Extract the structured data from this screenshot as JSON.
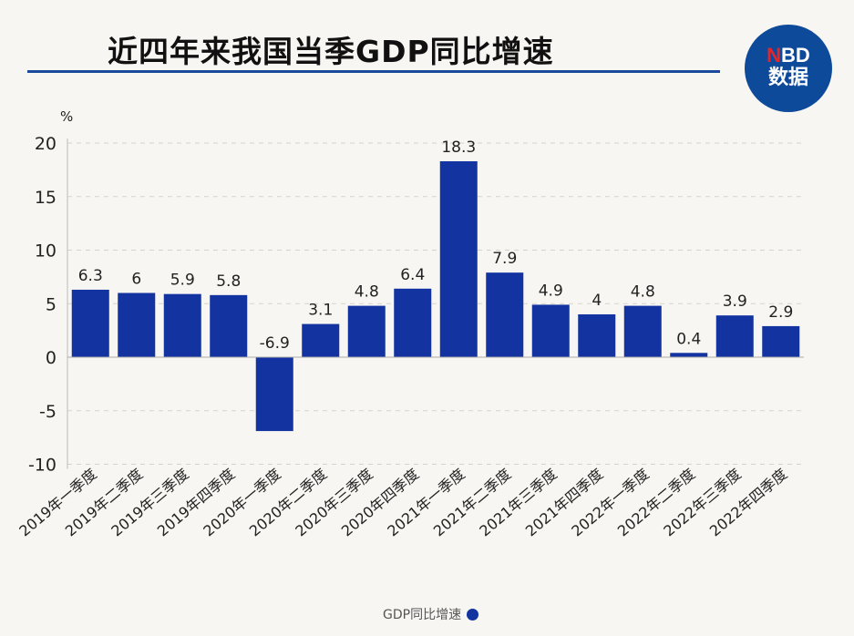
{
  "title": "近四年来我国当季GDP同比增速",
  "logo": {
    "text_top": "NBD",
    "text_bottom": "数据"
  },
  "chart_data": {
    "type": "bar",
    "title": "近四年来我国当季GDP同比增速",
    "ylabel": "%",
    "xlabel": "",
    "ylim": [
      -10,
      20
    ],
    "yticks": [
      -10,
      -5,
      0,
      5,
      10,
      15,
      20
    ],
    "grid": true,
    "legend_position": "bottom",
    "categories": [
      "2019年一季度",
      "2019年二季度",
      "2019年三季度",
      "2019年四季度",
      "2020年一季度",
      "2020年二季度",
      "2020年三季度",
      "2020年四季度",
      "2021年一季度",
      "2021年二季度",
      "2021年三季度",
      "2021年四季度",
      "2022年一季度",
      "2022年二季度",
      "2022年三季度",
      "2022年四季度"
    ],
    "series": [
      {
        "name": "GDP同比增速",
        "color": "#1233a0",
        "values": [
          6.3,
          6,
          5.9,
          5.8,
          -6.9,
          3.1,
          4.8,
          6.4,
          18.3,
          7.9,
          4.9,
          4,
          4.8,
          0.4,
          3.9,
          2.9
        ]
      }
    ]
  }
}
